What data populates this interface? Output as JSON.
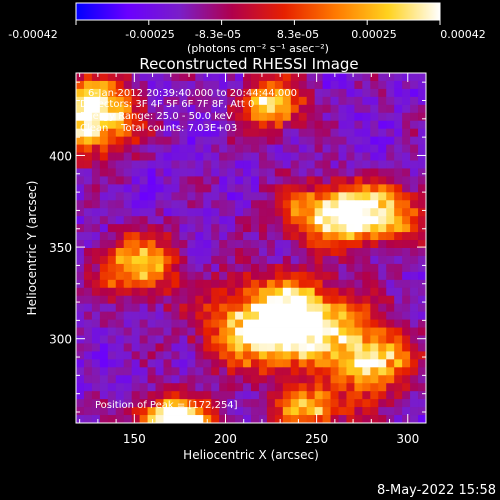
{
  "colors": {
    "background": "#000000",
    "text": "#ffffff",
    "colormap": [
      "#0000ff",
      "#6a00ff",
      "#7a1ec8",
      "#b0004c",
      "#e62000",
      "#ff7a00",
      "#ffd21e",
      "#ffffff"
    ]
  },
  "colorbar": {
    "ticks": [
      "-0.00042",
      "-0.00025",
      "-8.3e-05",
      "8.3e-05",
      "0.00025",
      "0.00042"
    ],
    "units": "(photons cm⁻² s⁻¹ asec⁻²)"
  },
  "annotations": {
    "line1": "6-Jan-2012 20:39:40.000 to 20:44:44.000",
    "line2": "Detectors: 3F 4F 5F 6F 7F 8F, Att 0",
    "line3": "Energy Range: 25.0 - 50.0 keV",
    "line4": "Clean    Total counts: 7.03E+03",
    "peak": "Position of Peak = [172,254]"
  },
  "footer": {
    "timestamp": "8-May-2022 15:58"
  },
  "chart_data": {
    "type": "heatmap",
    "title": "Reconstructed RHESSI Image",
    "xlabel": "Heliocentric X (arcsec)",
    "ylabel": "Heliocentric Y (arcsec)",
    "xlim": [
      118,
      310
    ],
    "ylim": [
      254,
      445
    ],
    "xticks": [
      150,
      200,
      250,
      300
    ],
    "yticks": [
      300,
      350,
      400
    ],
    "clim": [
      -0.00042,
      0.00042
    ],
    "peak": [
      172,
      254
    ],
    "grid": false,
    "sources": [
      {
        "x": 232,
        "y": 308,
        "sx": 26,
        "sy": 16,
        "amp": 1.0
      },
      {
        "x": 270,
        "y": 368,
        "sx": 24,
        "sy": 11,
        "amp": 0.9
      },
      {
        "x": 128,
        "y": 422,
        "sx": 15,
        "sy": 14,
        "amp": 0.85
      },
      {
        "x": 172,
        "y": 254,
        "sx": 14,
        "sy": 9,
        "amp": 0.95
      },
      {
        "x": 225,
        "y": 428,
        "sx": 12,
        "sy": 10,
        "amp": 0.65
      },
      {
        "x": 282,
        "y": 287,
        "sx": 14,
        "sy": 12,
        "amp": 0.65
      },
      {
        "x": 152,
        "y": 340,
        "sx": 15,
        "sy": 12,
        "amp": 0.6
      },
      {
        "x": 248,
        "y": 262,
        "sx": 14,
        "sy": 8,
        "amp": 0.55
      }
    ]
  }
}
